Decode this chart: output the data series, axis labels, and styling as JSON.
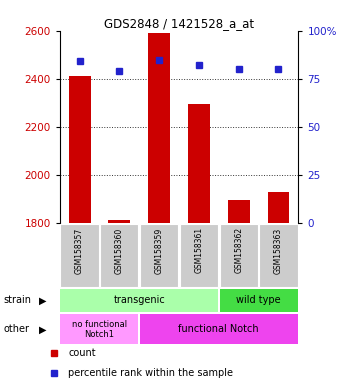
{
  "title": "GDS2848 / 1421528_a_at",
  "samples": [
    "GSM158357",
    "GSM158360",
    "GSM158359",
    "GSM158361",
    "GSM158362",
    "GSM158363"
  ],
  "counts": [
    2410,
    1810,
    2590,
    2295,
    1895,
    1930
  ],
  "percentiles": [
    84,
    79,
    85,
    82,
    80,
    80
  ],
  "ylim_left": [
    1800,
    2600
  ],
  "ylim_right": [
    0,
    100
  ],
  "yticks_left": [
    1800,
    2000,
    2200,
    2400,
    2600
  ],
  "yticks_right": [
    0,
    25,
    50,
    75,
    100
  ],
  "bar_color": "#CC0000",
  "dot_color": "#2222CC",
  "strain_transgenic_color": "#AAFFAA",
  "strain_wildtype_color": "#44DD44",
  "other_nofunc_color": "#FF99FF",
  "other_func_color": "#EE44EE",
  "ylabel_left_color": "#CC0000",
  "ylabel_right_color": "#2222CC",
  "tick_label_bg": "#CCCCCC",
  "legend_count_color": "#CC0000",
  "legend_pct_color": "#2222CC",
  "grid_color": "#333333"
}
